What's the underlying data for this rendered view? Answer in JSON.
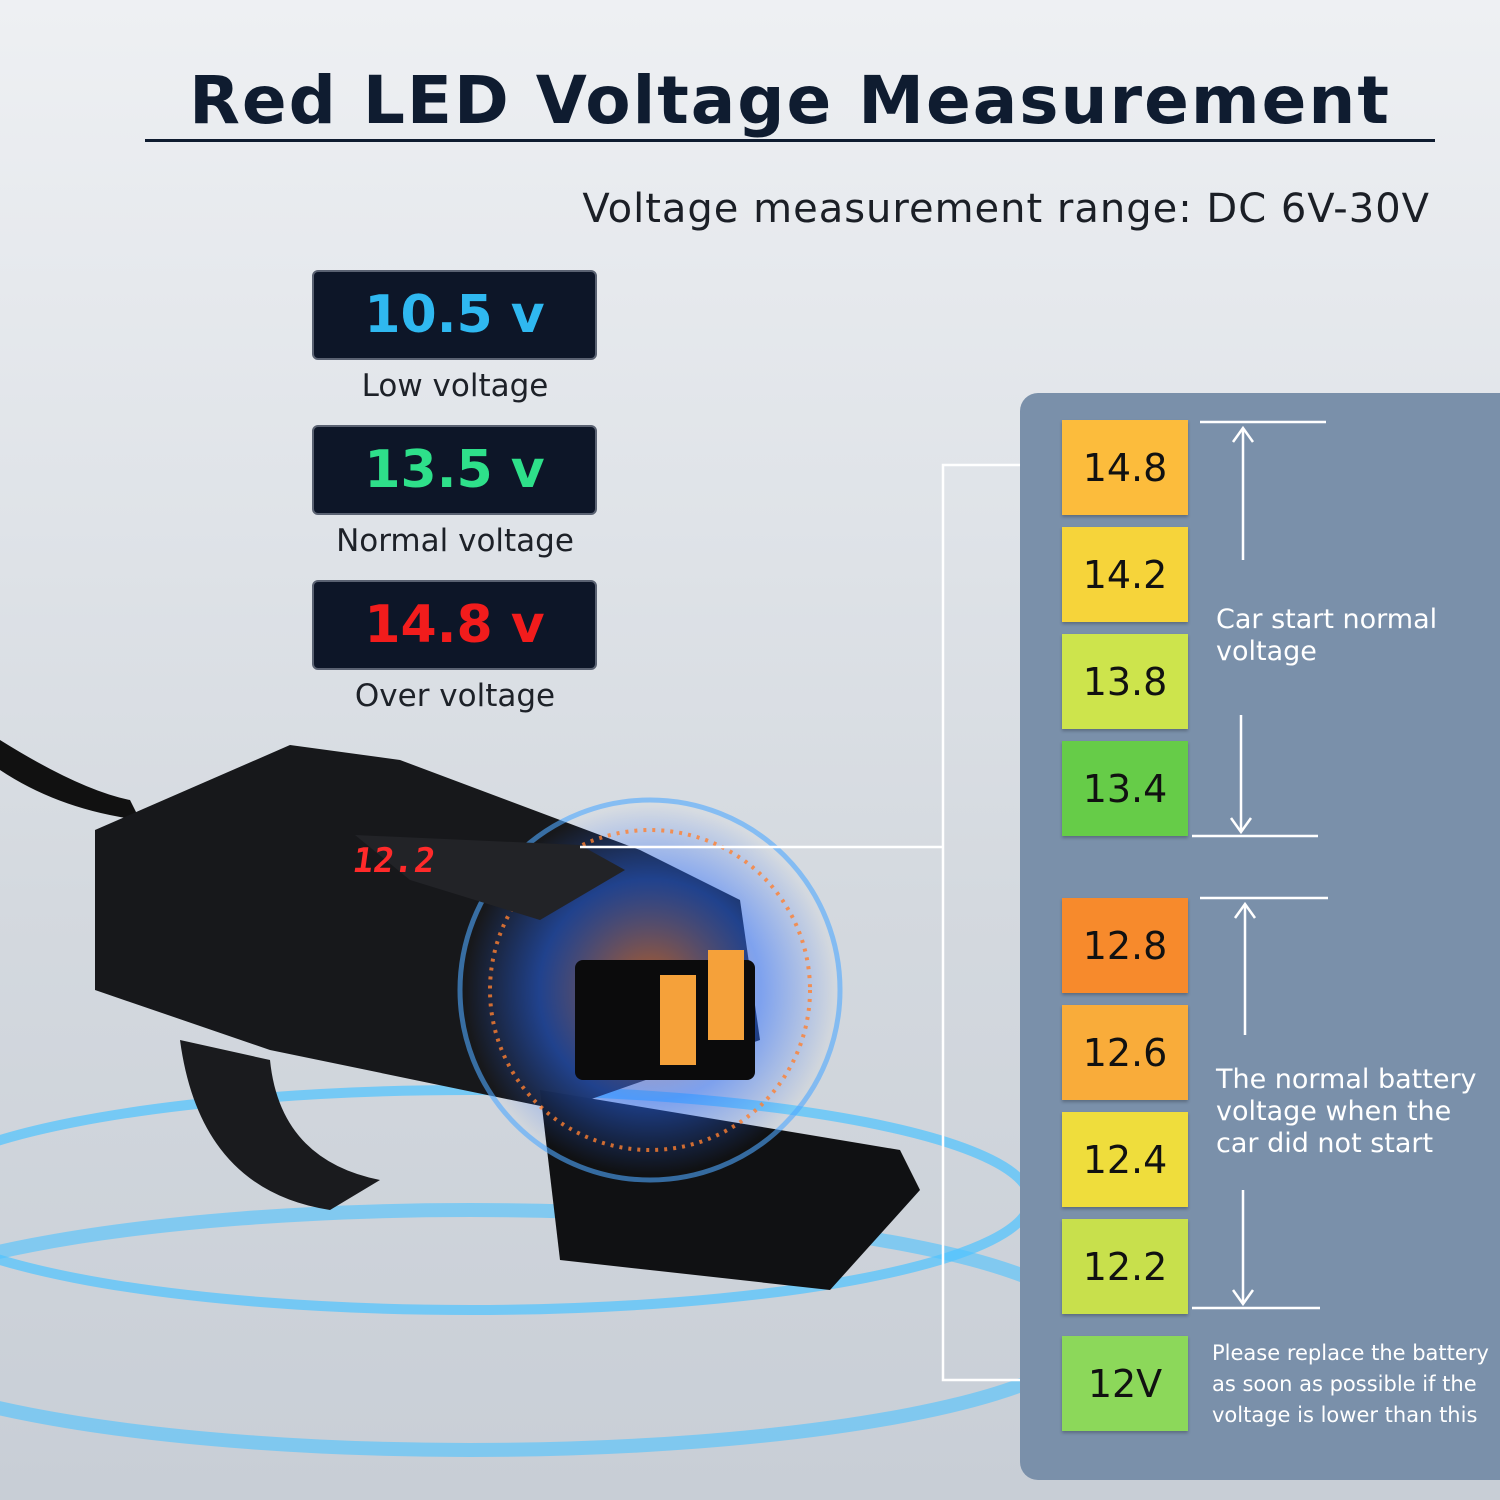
{
  "header": {
    "title": "Red LED Voltage Measurement",
    "subtitle": "Voltage measurement range: DC 6V-30V"
  },
  "displays": [
    {
      "reading": "10.5 v",
      "label": "Low voltage",
      "color": "#2fb8f0"
    },
    {
      "reading": "13.5 v",
      "label": "Normal voltage",
      "color": "#2ee08a"
    },
    {
      "reading": "14.8 v",
      "label": "Over voltage",
      "color": "#f21c1c"
    }
  ],
  "device": {
    "display": "12.2"
  },
  "scale": {
    "groups": [
      {
        "levels": [
          {
            "text": "14.8",
            "color": "#fcbc3c"
          },
          {
            "text": "14.2",
            "color": "#f6d43a"
          },
          {
            "text": "13.8",
            "color": "#cde44c"
          },
          {
            "text": "13.4",
            "color": "#66cc48"
          }
        ],
        "caption": "Car start normal voltage"
      },
      {
        "levels": [
          {
            "text": "12.8",
            "color": "#f78a2c"
          },
          {
            "text": "12.6",
            "color": "#f9ac3a"
          },
          {
            "text": "12.4",
            "color": "#efdd3c"
          },
          {
            "text": "12.2",
            "color": "#c8e04c"
          }
        ],
        "caption": "The normal battery voltage when the car did not start"
      }
    ],
    "minimum": {
      "text": "12V",
      "color": "#8cd85a",
      "caption": "Please replace the battery as soon as possible if the voltage is lower than this"
    }
  }
}
